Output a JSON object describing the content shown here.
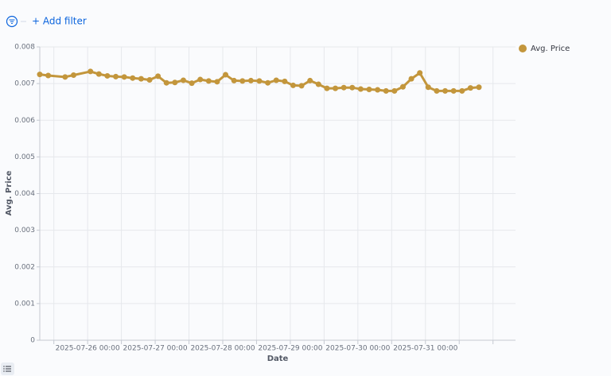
{
  "filter_bar": {
    "add_filter": "+ Add filter"
  },
  "chart_data": {
    "type": "line",
    "x_label": "Date",
    "y_label": "Avg. Price",
    "x": [
      "2025-07-25 07:00",
      "2025-07-25 10:00",
      "2025-07-25 16:00",
      "2025-07-25 19:00",
      "2025-07-26 01:00",
      "2025-07-26 04:00",
      "2025-07-26 07:00",
      "2025-07-26 10:00",
      "2025-07-26 13:00",
      "2025-07-26 16:00",
      "2025-07-26 19:00",
      "2025-07-26 22:00",
      "2025-07-27 01:00",
      "2025-07-27 04:00",
      "2025-07-27 07:00",
      "2025-07-27 10:00",
      "2025-07-27 13:00",
      "2025-07-27 16:00",
      "2025-07-27 19:00",
      "2025-07-27 22:00",
      "2025-07-28 01:00",
      "2025-07-28 04:00",
      "2025-07-28 07:00",
      "2025-07-28 10:00",
      "2025-07-28 13:00",
      "2025-07-28 16:00",
      "2025-07-28 19:00",
      "2025-07-28 22:00",
      "2025-07-29 01:00",
      "2025-07-29 04:00",
      "2025-07-29 07:00",
      "2025-07-29 10:00",
      "2025-07-29 13:00",
      "2025-07-29 16:00",
      "2025-07-29 19:00",
      "2025-07-29 22:00",
      "2025-07-30 01:00",
      "2025-07-30 04:00",
      "2025-07-30 07:00",
      "2025-07-30 10:00",
      "2025-07-30 13:00",
      "2025-07-30 16:00",
      "2025-07-30 19:00",
      "2025-07-30 22:00",
      "2025-07-31 01:00",
      "2025-07-31 04:00",
      "2025-07-31 07:00",
      "2025-07-31 10:00",
      "2025-07-31 13:00",
      "2025-07-31 16:00",
      "2025-07-31 19:00"
    ],
    "series": [
      {
        "name": "Avg. Price",
        "color": "#c3963c",
        "values": [
          0.00725,
          0.00722,
          0.00718,
          0.00723,
          0.00733,
          0.00726,
          0.00721,
          0.00719,
          0.00718,
          0.00715,
          0.00713,
          0.0071,
          0.0072,
          0.00702,
          0.00703,
          0.00709,
          0.00701,
          0.00711,
          0.00707,
          0.00705,
          0.00724,
          0.00708,
          0.00707,
          0.00708,
          0.00707,
          0.00702,
          0.00709,
          0.00706,
          0.00695,
          0.00694,
          0.00708,
          0.00698,
          0.00687,
          0.00687,
          0.00689,
          0.00689,
          0.00685,
          0.00684,
          0.00683,
          0.0068,
          0.0068,
          0.00691,
          0.00713,
          0.00729,
          0.0069,
          0.0068,
          0.0068,
          0.0068,
          0.0068,
          0.00688,
          0.0069
        ]
      }
    ],
    "xlim": [
      "2025-07-25 07:00",
      "2025-08-01 08:00"
    ],
    "xticks": [
      "2025-07-26 00:00",
      "2025-07-27 00:00",
      "2025-07-28 00:00",
      "2025-07-29 00:00",
      "2025-07-30 00:00",
      "2025-07-31 00:00"
    ],
    "x_minor_ticks": [
      "2025-07-25 12:00",
      "2025-07-26 12:00",
      "2025-07-27 12:00",
      "2025-07-28 12:00",
      "2025-07-29 12:00",
      "2025-07-30 12:00",
      "2025-07-31 12:00",
      "2025-08-01 00:00"
    ],
    "ylim": [
      0,
      0.008
    ],
    "yticks": [
      0,
      0.001,
      0.002,
      0.003,
      0.004,
      0.005,
      0.006,
      0.007,
      0.008
    ],
    "grid": true,
    "legend": "top-right"
  }
}
